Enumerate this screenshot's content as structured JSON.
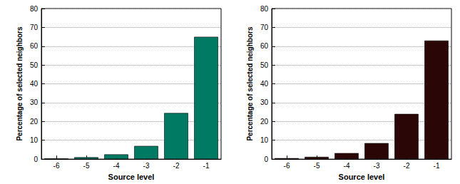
{
  "chart_data": [
    {
      "type": "bar",
      "x_label": "Source level",
      "y_label": "Percentage of selected neighbors",
      "categories": [
        "-6",
        "-5",
        "-4",
        "-3",
        "-2",
        "-1"
      ],
      "values": [
        0.3,
        1,
        2.5,
        7,
        24.5,
        65
      ],
      "color": "#007a63",
      "ylim": [
        0,
        80
      ],
      "yticks": [
        0,
        10,
        20,
        30,
        40,
        50,
        60,
        70,
        80
      ],
      "grid": true
    },
    {
      "type": "bar",
      "x_label": "Source level",
      "y_label": "Percentage of selected neighbors",
      "categories": [
        "-6",
        "-5",
        "-4",
        "-3",
        "-2",
        "-1"
      ],
      "values": [
        0.5,
        1.2,
        3.2,
        8.5,
        24,
        63
      ],
      "color": "#2a0606",
      "ylim": [
        0,
        80
      ],
      "yticks": [
        0,
        10,
        20,
        30,
        40,
        50,
        60,
        70,
        80
      ],
      "grid": true
    }
  ]
}
